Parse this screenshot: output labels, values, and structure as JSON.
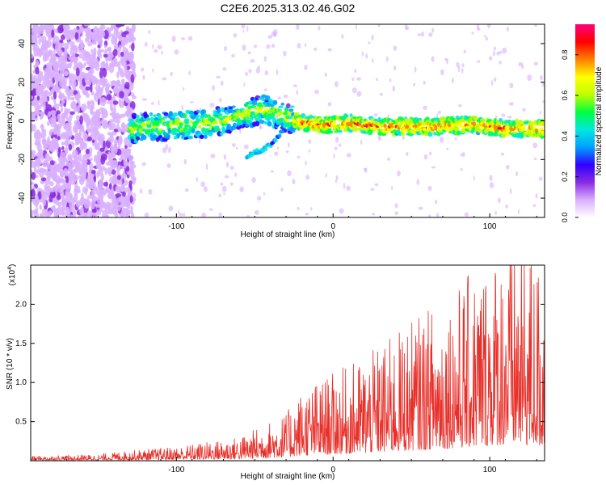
{
  "chart_data": [
    {
      "type": "heatmap",
      "title": "C2E6.2025.313.02.46.G02",
      "xlabel": "Height of straight line (km)",
      "ylabel": "Frequency (Hz)",
      "xlim": [
        -193,
        135
      ],
      "ylim": [
        -50,
        50
      ],
      "xticks": [
        -100,
        0,
        100
      ],
      "xtick_labels": [
        "-100",
        "0",
        "100"
      ],
      "yticks": [
        -40,
        -20,
        0,
        20,
        40
      ],
      "ytick_labels": [
        "-40",
        "-20",
        "0",
        "20",
        "40"
      ],
      "colorbar": {
        "label": "Normalized spectral amplitude",
        "range": [
          0,
          0.95
        ],
        "ticks": [
          0.0,
          0.2,
          0.4,
          0.6,
          0.8
        ],
        "tick_labels": [
          "0.0",
          "0.2",
          "0.4",
          "0.6",
          "0.8"
        ],
        "colors": [
          "#ffffff",
          "#d8b0ff",
          "#8a2be2",
          "#3000ff",
          "#00a0ff",
          "#00e8e0",
          "#00ff40",
          "#c0ff00",
          "#ffff00",
          "#ff8000",
          "#ff0000",
          "#ff0080"
        ]
      },
      "ridge": {
        "x": [
          -130,
          -110,
          -90,
          -70,
          -55,
          -45,
          -35,
          -25,
          -10,
          0,
          10,
          30,
          60,
          90,
          110,
          135
        ],
        "y": [
          -4,
          -3,
          -2,
          0,
          4,
          6,
          3,
          0,
          -2,
          -2,
          -1,
          -3,
          -3,
          -2,
          -4,
          -4
        ]
      },
      "secondary_branch": {
        "x": [
          -55,
          -45,
          -38,
          -32
        ],
        "y": [
          -18,
          -15,
          -11,
          -5
        ]
      }
    },
    {
      "type": "line",
      "xlabel": "Height of straight line (km)",
      "ylabel": "SNR (10 * v/v)",
      "y_multiplier_label": "(x10",
      "y_multiplier_exp": "4",
      "y_multiplier_close": ")",
      "xlim": [
        -193,
        135
      ],
      "ylim": [
        0,
        2.5
      ],
      "xticks": [
        -100,
        0,
        100
      ],
      "xtick_labels": [
        "-100",
        "0",
        "100"
      ],
      "yticks": [
        0.5,
        1.0,
        1.5,
        2.0
      ],
      "ytick_labels": [
        "0.5",
        "1.0",
        "1.5",
        "2.0"
      ],
      "series": [
        {
          "name": "SNR",
          "color": "#e8302a",
          "envelope_x": [
            -193,
            -150,
            -135,
            -100,
            -60,
            -30,
            -20,
            0,
            20,
            40,
            60,
            80,
            100,
            115,
            125,
            135
          ],
          "envelope_y": [
            0.03,
            0.04,
            0.06,
            0.09,
            0.15,
            0.3,
            0.45,
            0.55,
            0.65,
            0.8,
            0.95,
            1.1,
            1.3,
            1.4,
            1.35,
            1.2
          ]
        }
      ]
    }
  ]
}
